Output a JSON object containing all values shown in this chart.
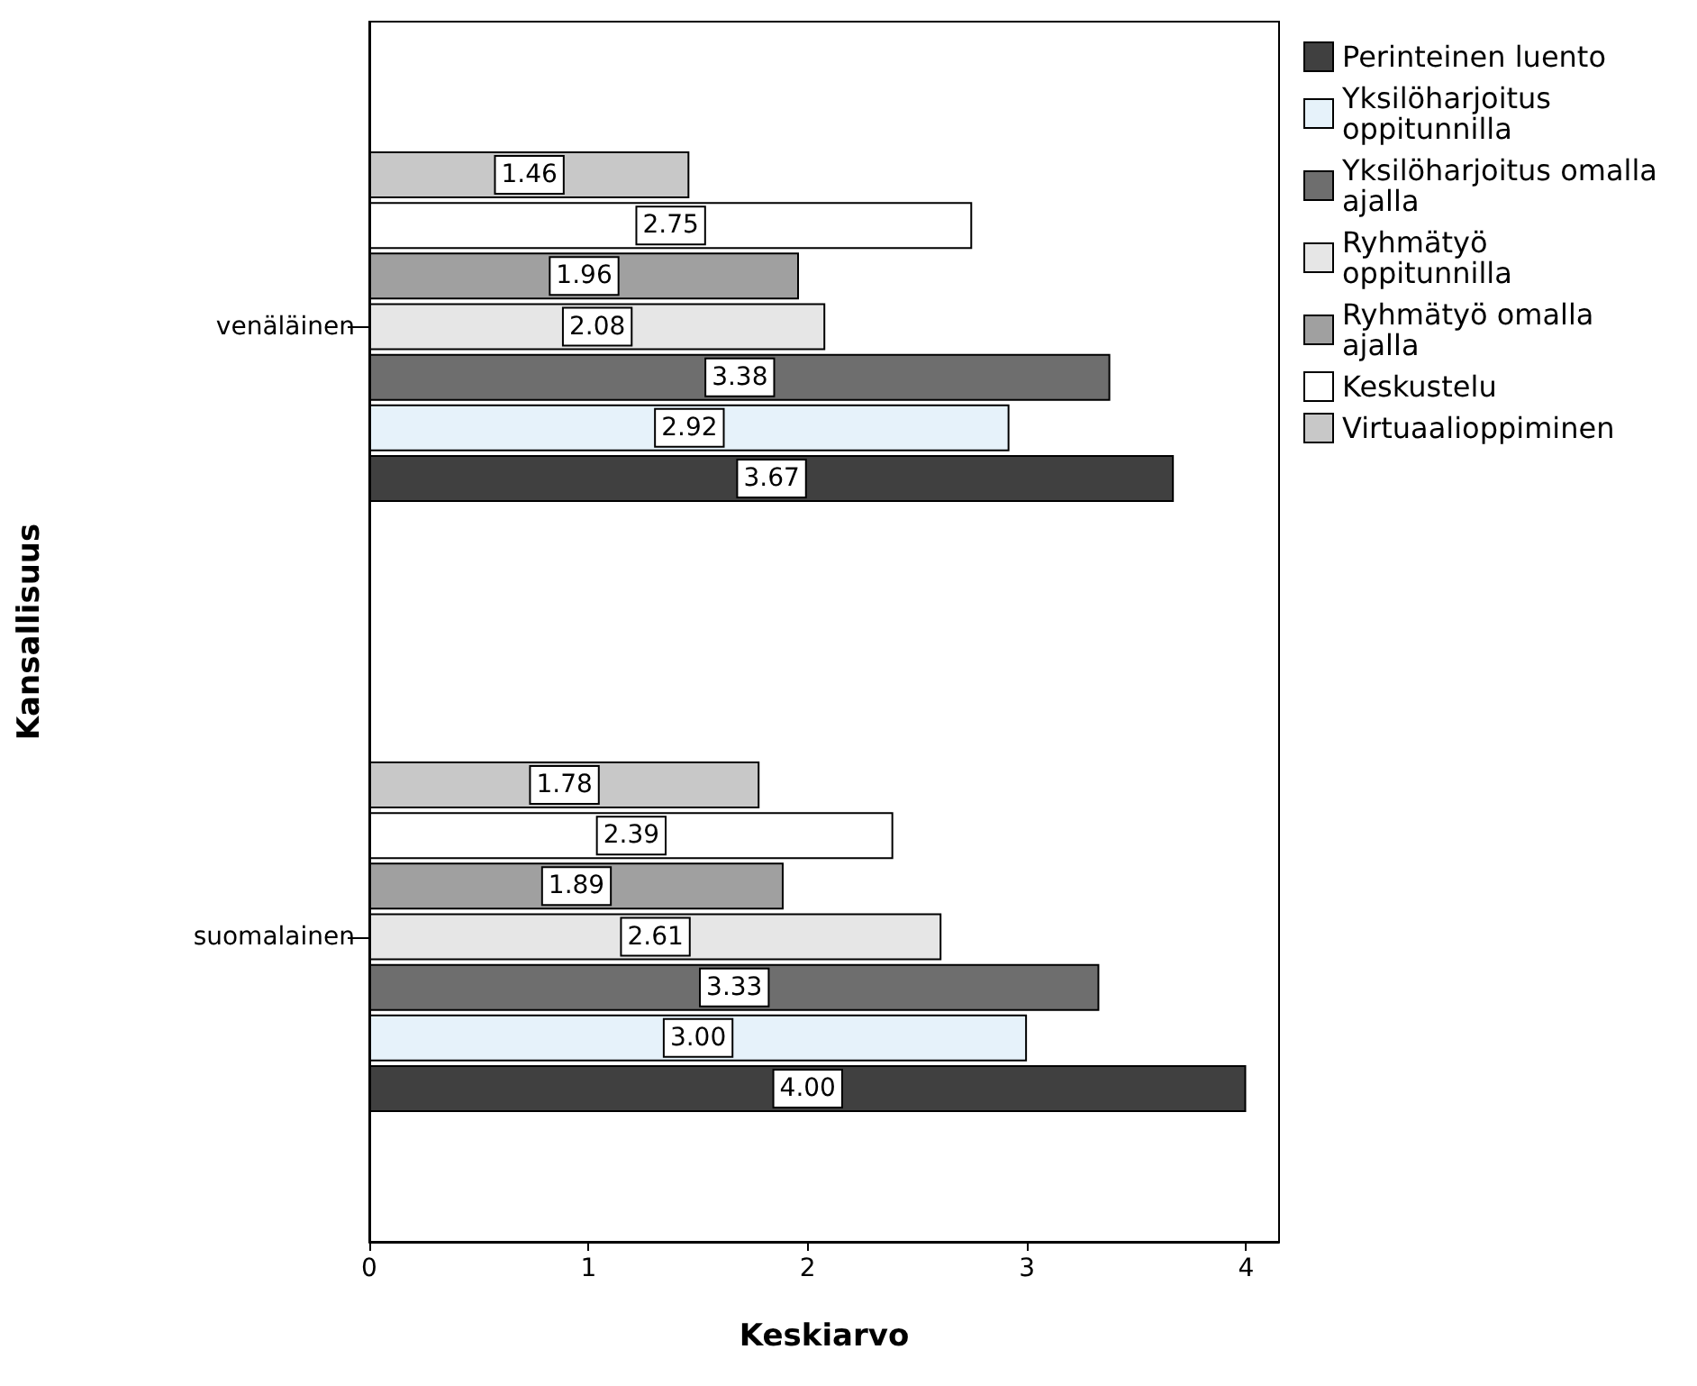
{
  "chart_data": {
    "type": "bar",
    "orientation": "horizontal",
    "xlabel": "Keskiarvo",
    "ylabel": "Kansallisuus",
    "categories": [
      "venäläinen",
      "suomalainen"
    ],
    "xlim": [
      0,
      4.15
    ],
    "xticks": [
      0,
      1,
      2,
      3,
      4
    ],
    "grid": false,
    "legend": "right",
    "series": [
      {
        "name": "Perinteinen luento",
        "color": "#404040",
        "values": [
          3.67,
          4.0
        ],
        "value_labels": [
          "3.67",
          "4.00"
        ]
      },
      {
        "name": "Yksilöharjoitus oppitunnilla",
        "color": "#e6f2fa",
        "values": [
          2.92,
          3.0
        ],
        "value_labels": [
          "2.92",
          "3.00"
        ]
      },
      {
        "name": "Yksilöharjoitus omalla ajalla",
        "color": "#6e6e6e",
        "values": [
          3.38,
          3.33
        ],
        "value_labels": [
          "3.38",
          "3.33"
        ]
      },
      {
        "name": "Ryhmätyö oppitunnilla",
        "color": "#e6e6e6",
        "values": [
          2.08,
          2.61
        ],
        "value_labels": [
          "2.08",
          "2.61"
        ]
      },
      {
        "name": "Ryhmätyö omalla ajalla",
        "color": "#a0a0a0",
        "values": [
          1.96,
          1.89
        ],
        "value_labels": [
          "1.96",
          "1.89"
        ]
      },
      {
        "name": "Keskustelu",
        "color": "#ffffff",
        "values": [
          2.75,
          2.39
        ],
        "value_labels": [
          "2.75",
          "2.39"
        ]
      },
      {
        "name": "Virtuaalioppiminen",
        "color": "#c8c8c8",
        "values": [
          1.46,
          1.78
        ],
        "value_labels": [
          "1.46",
          "1.78"
        ]
      }
    ]
  }
}
